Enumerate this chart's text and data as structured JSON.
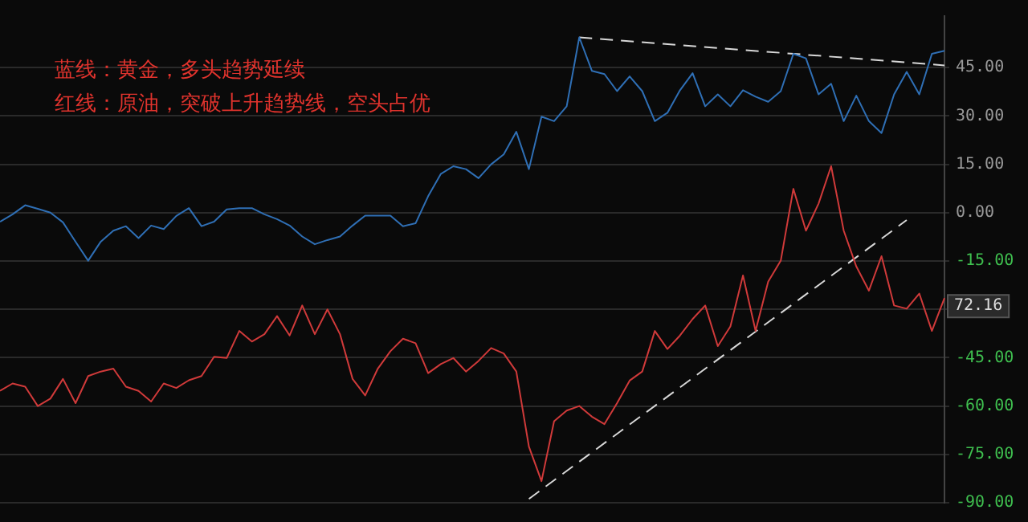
{
  "chart_data": {
    "type": "line",
    "annotations": [
      "蓝线：黄金，多头趋势延续",
      "红线：原油，突破上升趋势线，空头占优",
      {
        "text": "72.16",
        "y": -29
      }
    ],
    "categories": [
      null,
      null,
      null,
      null,
      null,
      null,
      null,
      null,
      null,
      null,
      null,
      null,
      null,
      null,
      null,
      null,
      null,
      null,
      null,
      null,
      null,
      null,
      null,
      null,
      null,
      null,
      null,
      null,
      null,
      null,
      null,
      null,
      null,
      null,
      null,
      null,
      null,
      null,
      null,
      null,
      null,
      null,
      null,
      null,
      null,
      null,
      null,
      null,
      null,
      null,
      null,
      null,
      null,
      null,
      null,
      null,
      null,
      null,
      null,
      null,
      null,
      null,
      null,
      null,
      null,
      null,
      null,
      null,
      null,
      null,
      null,
      null,
      null,
      null,
      null,
      null
    ],
    "ylim": [
      -90,
      61
    ],
    "yticks": [
      {
        "value": 45,
        "label": "45.00"
      },
      {
        "value": 30,
        "label": "30.00"
      },
      {
        "value": 15,
        "label": "15.00"
      },
      {
        "value": 0,
        "label": "0.00"
      },
      {
        "value": -15,
        "label": "-15.00"
      },
      {
        "value": -30,
        "label": null
      },
      {
        "value": -45,
        "label": "-45.00"
      },
      {
        "value": -60,
        "label": "-60.00"
      },
      {
        "value": -75,
        "label": "-75.00"
      },
      {
        "value": -90,
        "label": "-90.00"
      }
    ],
    "tick_labels": "y",
    "grid": "y",
    "legend": false,
    "marker": "none",
    "series": [
      {
        "color": "#2f6fb5",
        "values": [
          -2.8,
          -0.5,
          2.3,
          1.2,
          0,
          -3,
          -9,
          -14.9,
          -9,
          -5.6,
          -4.2,
          -7.9,
          -4,
          -5.1,
          -1,
          1.4,
          -4.2,
          -2.8,
          1,
          1.4,
          1.4,
          -0.5,
          -2,
          -4,
          -7.4,
          -9.8,
          -8.5,
          -7.4,
          -4,
          -0.9,
          -0.9,
          -0.9,
          -4.2,
          -3.3,
          5.1,
          12,
          14.4,
          13.5,
          10.7,
          15,
          18.1,
          25.1,
          13.5,
          29.8,
          28.4,
          33,
          54.4,
          44,
          43,
          37.7,
          42.3,
          37.7,
          28.4,
          31,
          38,
          43.3,
          33,
          36.7,
          33,
          38,
          36,
          34.4,
          37.7,
          49.3,
          47.9,
          36.7,
          40,
          28.4,
          36.3,
          28.4,
          24.7,
          36.7,
          43.7,
          36.7,
          49.3,
          50.2
        ]
      },
      {
        "color": "#d03a3a",
        "values": [
          -55.3,
          -53,
          -54,
          -60,
          -57.7,
          -51.6,
          -59.1,
          -50.7,
          -49.3,
          -48.4,
          -54,
          -55.3,
          -58.6,
          -53,
          -54.4,
          -52,
          -50.7,
          -44.7,
          -45.1,
          -36.7,
          -40,
          -37.7,
          -32.1,
          -38.1,
          -28.8,
          -37.7,
          -30,
          -37.7,
          -51.6,
          -56.7,
          -48.4,
          -43,
          -39.1,
          -40.5,
          -49.8,
          -47,
          -45.1,
          -49.3,
          -46,
          -42,
          -43.7,
          -49.3,
          -72.6,
          -83.3,
          -64.7,
          -61.4,
          -60,
          -63.3,
          -65.6,
          -59.1,
          -52.1,
          -49.3,
          -36.7,
          -42.3,
          -38.1,
          -33,
          -28.8,
          -41.4,
          -35.3,
          -19.5,
          -36.7,
          -21.4,
          -14.9,
          7.4,
          -5.6,
          2.8,
          14.4,
          -5.6,
          -16.7,
          -24.2,
          -13.5,
          -28.8,
          -29.8,
          -25.1,
          -36.7,
          -26.5
        ]
      },
      {
        "color": "#d8d8d8",
        "line_style": "dashed",
        "values": [
          null,
          null,
          null,
          null,
          null,
          null,
          null,
          null,
          null,
          null,
          null,
          null,
          null,
          null,
          null,
          null,
          null,
          null,
          null,
          null,
          null,
          null,
          null,
          null,
          null,
          null,
          null,
          null,
          null,
          null,
          null,
          null,
          null,
          null,
          null,
          null,
          null,
          null,
          null,
          null,
          null,
          null,
          null,
          null,
          null,
          null,
          54.4,
          null,
          null,
          null,
          null,
          null,
          null,
          null,
          null,
          null,
          null,
          null,
          null,
          null,
          null,
          null,
          null,
          null,
          null,
          null,
          null,
          null,
          null,
          null,
          null,
          null,
          null,
          null,
          null,
          45.7
        ]
      },
      {
        "color": "#d8d8d8",
        "line_style": "dashed",
        "values": [
          null,
          null,
          null,
          null,
          null,
          null,
          null,
          null,
          null,
          null,
          null,
          null,
          null,
          null,
          null,
          null,
          null,
          null,
          null,
          null,
          null,
          null,
          null,
          null,
          null,
          null,
          null,
          null,
          null,
          null,
          null,
          null,
          null,
          null,
          null,
          null,
          null,
          null,
          null,
          null,
          null,
          null,
          -88.8,
          null,
          null,
          null,
          null,
          null,
          null,
          null,
          null,
          null,
          null,
          null,
          null,
          null,
          null,
          null,
          null,
          null,
          null,
          null,
          null,
          null,
          null,
          null,
          null,
          null,
          null,
          null,
          null,
          null,
          -2.3,
          null,
          null,
          null
        ]
      }
    ]
  }
}
